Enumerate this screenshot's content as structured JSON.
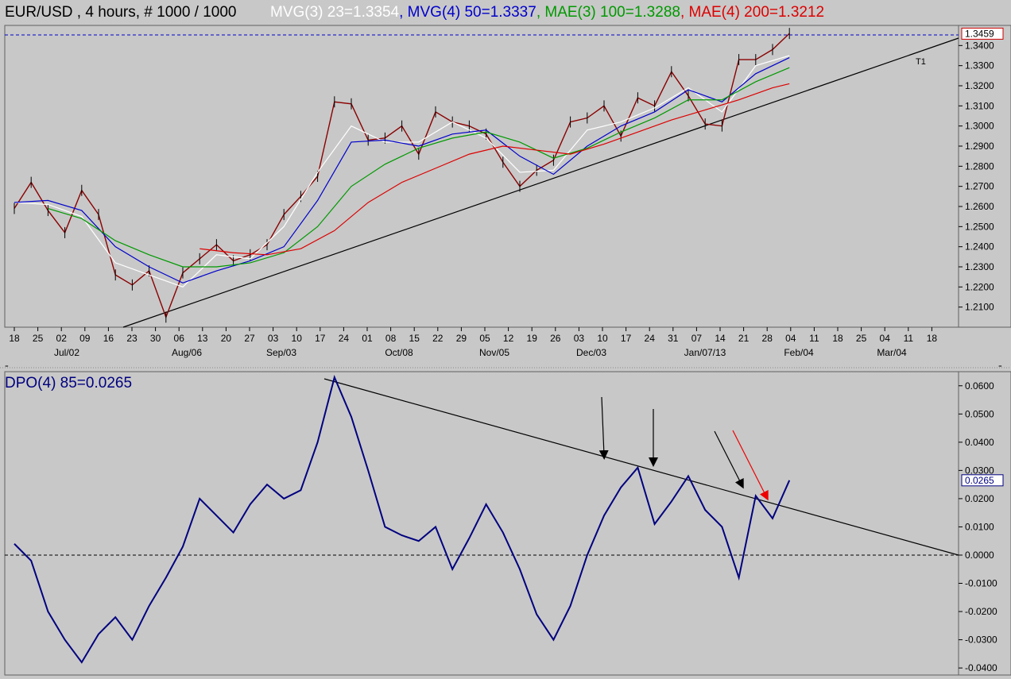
{
  "header": {
    "symbol_label": "EUR/USD , 4 hours, # 1000 / 1000",
    "indicators": [
      {
        "label": "MVG(3) 23=1.3354",
        "color": "#ffffff"
      },
      {
        "label": "MVG(4) 50=1.3337",
        "color": "#0000cc"
      },
      {
        "label": "MAE(3) 100=1.3288",
        "color": "#009900"
      },
      {
        "label": "MAE(4) 200=1.3212",
        "color": "#dd0000"
      }
    ]
  },
  "lower_panel": {
    "indicator_label": "DPO(4) 85=0.0265",
    "indicator_color": "#000080"
  },
  "trendline_labels": {
    "t1": "T1"
  },
  "chart_data": [
    {
      "type": "line",
      "name": "price",
      "ylim": [
        1.2,
        1.35
      ],
      "yticks": [
        1.21,
        1.22,
        1.23,
        1.24,
        1.25,
        1.26,
        1.27,
        1.28,
        1.29,
        1.3,
        1.31,
        1.32,
        1.33,
        1.34
      ],
      "ytick_labels": [
        "1.2100",
        "1.2200",
        "1.2300",
        "1.2400",
        "1.2500",
        "1.2600",
        "1.2700",
        "1.2800",
        "1.2900",
        "1.3000",
        "1.3100",
        "1.3200",
        "1.3300",
        "1.3400"
      ],
      "last_value_label": "1.3459",
      "last_value": 1.3459,
      "xtick_labels": [
        "18",
        "25",
        "02",
        "09",
        "16",
        "23",
        "30",
        "06",
        "13",
        "20",
        "27",
        "03",
        "10",
        "17",
        "24",
        "01",
        "08",
        "15",
        "22",
        "29",
        "05",
        "12",
        "19",
        "26",
        "03",
        "10",
        "17",
        "24",
        "31",
        "07",
        "14",
        "21",
        "28",
        "04",
        "11",
        "18",
        "25",
        "04",
        "11",
        "18"
      ],
      "month_labels": [
        "Jul/02",
        "Aug/06",
        "Sep/03",
        "Oct/08",
        "Nov/05",
        "Dec/03",
        "Jan/07/13",
        "Feb/04",
        "Mar/04"
      ],
      "series": [
        {
          "name": "EUR/USD",
          "color": "#8b0000",
          "values": [
            [
              0,
              1.259
            ],
            [
              1,
              1.272
            ],
            [
              2,
              1.258
            ],
            [
              3,
              1.247
            ],
            [
              4,
              1.268
            ],
            [
              5,
              1.256
            ],
            [
              6,
              1.226
            ],
            [
              7,
              1.221
            ],
            [
              8,
              1.228
            ],
            [
              9,
              1.205
            ],
            [
              10,
              1.227
            ],
            [
              11,
              1.234
            ],
            [
              12,
              1.241
            ],
            [
              13,
              1.233
            ],
            [
              14,
              1.236
            ],
            [
              15,
              1.241
            ],
            [
              16,
              1.256
            ],
            [
              17,
              1.265
            ],
            [
              18,
              1.275
            ],
            [
              19,
              1.312
            ],
            [
              20,
              1.311
            ],
            [
              21,
              1.293
            ],
            [
              22,
              1.294
            ],
            [
              23,
              1.3
            ],
            [
              24,
              1.286
            ],
            [
              25,
              1.307
            ],
            [
              26,
              1.302
            ],
            [
              27,
              1.3
            ],
            [
              28,
              1.296
            ],
            [
              29,
              1.282
            ],
            [
              30,
              1.27
            ],
            [
              31,
              1.278
            ],
            [
              32,
              1.283
            ],
            [
              33,
              1.302
            ],
            [
              34,
              1.304
            ],
            [
              35,
              1.31
            ],
            [
              36,
              1.295
            ],
            [
              37,
              1.314
            ],
            [
              38,
              1.31
            ],
            [
              39,
              1.327
            ],
            [
              40,
              1.315
            ],
            [
              41,
              1.301
            ],
            [
              42,
              1.3
            ],
            [
              43,
              1.333
            ],
            [
              44,
              1.333
            ],
            [
              45,
              1.338
            ],
            [
              46,
              1.346
            ]
          ]
        },
        {
          "name": "MVG(3) 23",
          "color": "#ffffff",
          "values": [
            [
              0,
              1.262
            ],
            [
              2,
              1.261
            ],
            [
              4,
              1.255
            ],
            [
              6,
              1.232
            ],
            [
              8,
              1.226
            ],
            [
              10,
              1.22
            ],
            [
              12,
              1.236
            ],
            [
              14,
              1.234
            ],
            [
              16,
              1.25
            ],
            [
              18,
              1.277
            ],
            [
              20,
              1.3
            ],
            [
              22,
              1.292
            ],
            [
              24,
              1.292
            ],
            [
              26,
              1.302
            ],
            [
              28,
              1.294
            ],
            [
              30,
              1.277
            ],
            [
              32,
              1.278
            ],
            [
              34,
              1.298
            ],
            [
              36,
              1.302
            ],
            [
              38,
              1.309
            ],
            [
              40,
              1.319
            ],
            [
              42,
              1.307
            ],
            [
              44,
              1.33
            ],
            [
              46,
              1.335
            ]
          ]
        },
        {
          "name": "MVG(4) 50",
          "color": "#0000cc",
          "values": [
            [
              0,
              1.262
            ],
            [
              2,
              1.263
            ],
            [
              4,
              1.258
            ],
            [
              6,
              1.24
            ],
            [
              8,
              1.23
            ],
            [
              10,
              1.222
            ],
            [
              12,
              1.228
            ],
            [
              14,
              1.233
            ],
            [
              16,
              1.24
            ],
            [
              18,
              1.263
            ],
            [
              20,
              1.292
            ],
            [
              22,
              1.293
            ],
            [
              24,
              1.29
            ],
            [
              26,
              1.296
            ],
            [
              28,
              1.298
            ],
            [
              30,
              1.285
            ],
            [
              32,
              1.276
            ],
            [
              34,
              1.29
            ],
            [
              36,
              1.3
            ],
            [
              38,
              1.307
            ],
            [
              40,
              1.318
            ],
            [
              42,
              1.312
            ],
            [
              44,
              1.326
            ],
            [
              46,
              1.334
            ]
          ]
        },
        {
          "name": "MAE(3) 100",
          "color": "#009900",
          "values": [
            [
              2,
              1.259
            ],
            [
              4,
              1.254
            ],
            [
              6,
              1.243
            ],
            [
              8,
              1.236
            ],
            [
              10,
              1.23
            ],
            [
              12,
              1.23
            ],
            [
              14,
              1.232
            ],
            [
              16,
              1.237
            ],
            [
              18,
              1.25
            ],
            [
              20,
              1.27
            ],
            [
              22,
              1.281
            ],
            [
              24,
              1.289
            ],
            [
              26,
              1.294
            ],
            [
              28,
              1.297
            ],
            [
              30,
              1.292
            ],
            [
              32,
              1.284
            ],
            [
              34,
              1.289
            ],
            [
              36,
              1.297
            ],
            [
              38,
              1.304
            ],
            [
              40,
              1.313
            ],
            [
              42,
              1.313
            ],
            [
              44,
              1.322
            ],
            [
              46,
              1.329
            ]
          ]
        },
        {
          "name": "MAE(4) 200",
          "color": "#dd0000",
          "values": [
            [
              11,
              1.239
            ],
            [
              13,
              1.237
            ],
            [
              15,
              1.236
            ],
            [
              17,
              1.239
            ],
            [
              19,
              1.248
            ],
            [
              21,
              1.262
            ],
            [
              23,
              1.272
            ],
            [
              25,
              1.279
            ],
            [
              27,
              1.286
            ],
            [
              29,
              1.29
            ],
            [
              31,
              1.288
            ],
            [
              33,
              1.286
            ],
            [
              35,
              1.291
            ],
            [
              37,
              1.297
            ],
            [
              39,
              1.303
            ],
            [
              41,
              1.308
            ],
            [
              43,
              1.313
            ],
            [
              45,
              1.319
            ],
            [
              46,
              1.321
            ]
          ]
        }
      ]
    },
    {
      "type": "line",
      "name": "DPO(4) 85",
      "ylim": [
        -0.0425,
        0.065
      ],
      "yticks": [
        -0.04,
        -0.03,
        -0.02,
        -0.01,
        0.0,
        0.01,
        0.02,
        0.03,
        0.04,
        0.05,
        0.06
      ],
      "ytick_labels": [
        "-0.0400",
        "-0.0300",
        "-0.0200",
        "-0.0100",
        "0.0000",
        "0.0100",
        "0.0200",
        "0.0300",
        "0.0400",
        "0.0500",
        "0.0600"
      ],
      "last_value_label": "0.0265",
      "last_value": 0.0265,
      "series": [
        {
          "name": "DPO(4) 85",
          "color": "#000080",
          "values": [
            [
              0,
              0.004
            ],
            [
              1,
              -0.002
            ],
            [
              2,
              -0.02
            ],
            [
              3,
              -0.03
            ],
            [
              4,
              -0.038
            ],
            [
              5,
              -0.028
            ],
            [
              6,
              -0.022
            ],
            [
              7,
              -0.03
            ],
            [
              8,
              -0.018
            ],
            [
              9,
              -0.008
            ],
            [
              10,
              0.003
            ],
            [
              11,
              0.02
            ],
            [
              12,
              0.014
            ],
            [
              13,
              0.008
            ],
            [
              14,
              0.018
            ],
            [
              15,
              0.025
            ],
            [
              16,
              0.02
            ],
            [
              17,
              0.023
            ],
            [
              18,
              0.04
            ],
            [
              19,
              0.063
            ],
            [
              20,
              0.049
            ],
            [
              21,
              0.03
            ],
            [
              22,
              0.01
            ],
            [
              23,
              0.007
            ],
            [
              24,
              0.005
            ],
            [
              25,
              0.01
            ],
            [
              26,
              -0.005
            ],
            [
              27,
              0.006
            ],
            [
              28,
              0.018
            ],
            [
              29,
              0.008
            ],
            [
              30,
              -0.005
            ],
            [
              31,
              -0.021
            ],
            [
              32,
              -0.03
            ],
            [
              33,
              -0.018
            ],
            [
              34,
              0.0
            ],
            [
              35,
              0.014
            ],
            [
              36,
              0.024
            ],
            [
              37,
              0.031
            ],
            [
              38,
              0.011
            ],
            [
              39,
              0.019
            ],
            [
              40,
              0.028
            ],
            [
              41,
              0.016
            ],
            [
              42,
              0.01
            ],
            [
              43,
              -0.008
            ],
            [
              44,
              0.021
            ],
            [
              45,
              0.013
            ],
            [
              46,
              0.0265
            ]
          ]
        }
      ],
      "zero_line": 0.0
    }
  ]
}
